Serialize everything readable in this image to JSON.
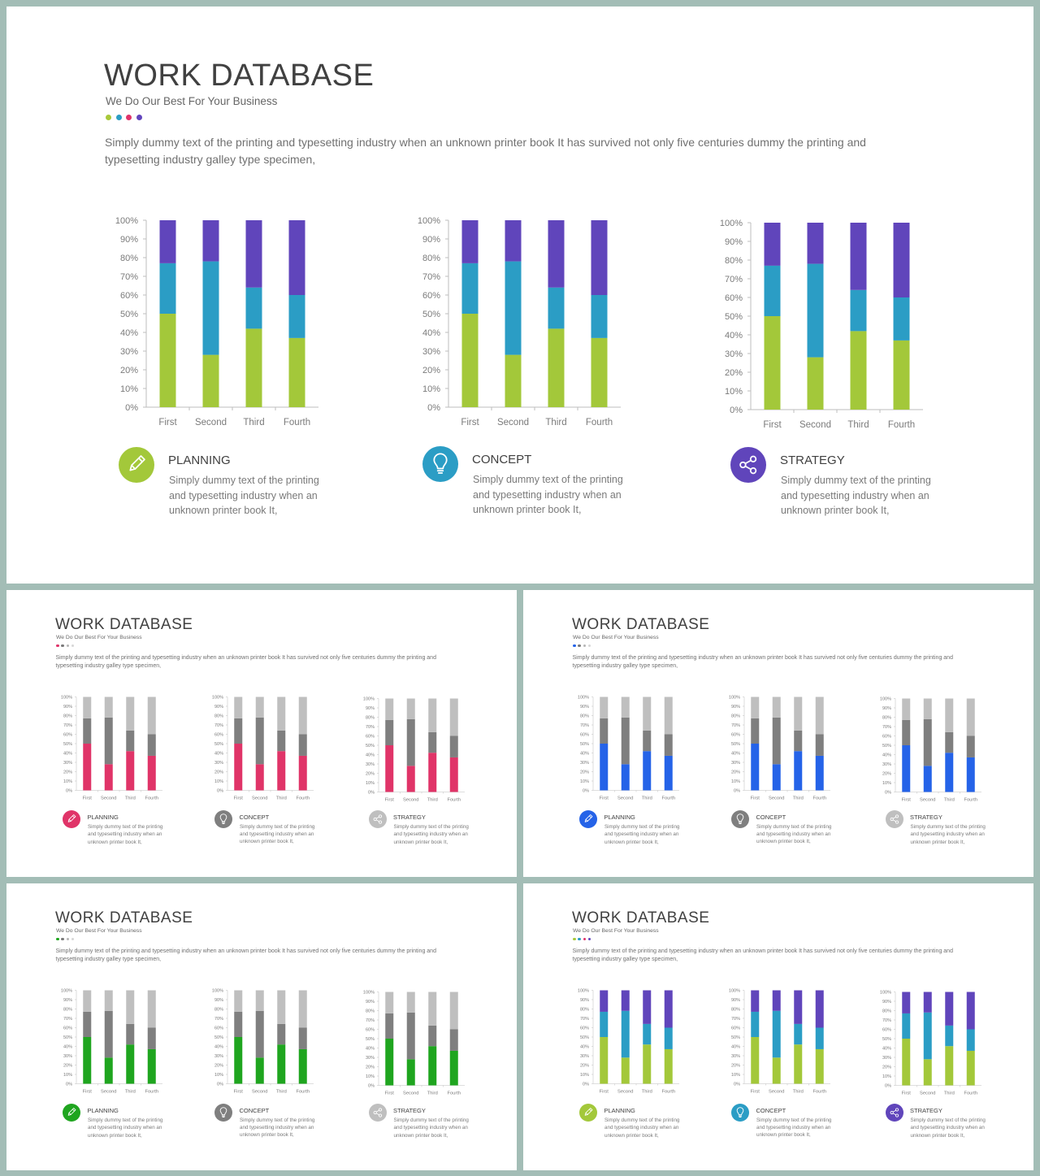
{
  "slides": [
    {
      "title": "WORK DATABASE",
      "subtitle": "We Do Our Best For Your Business",
      "dots": [
        "#a8c93a",
        "#2b9ec4",
        "#e0336a",
        "#6245bd"
      ],
      "description": "Simply dummy text of the printing and typesetting industry when an unknown printer book It has survived not only five centuries dummy the printing and typesetting industry galley type specimen,",
      "colors": [
        "#a3c83a",
        "#2b9dc5",
        "#6045bb"
      ],
      "icon_colors": [
        "#a3c83a",
        "#2b9dc5",
        "#6045bb"
      ]
    },
    {
      "title": "WORK DATABASE",
      "subtitle": "We Do Our Best For Your Business",
      "dots": [
        "#e0336a",
        "#7a7a7a",
        "#b5b5b5",
        "#d6d6d6"
      ],
      "description": "Simply dummy text of the printing and typesetting industry when an unknown printer book It has survived not only five centuries dummy the printing and typesetting industry galley type specimen,",
      "colors": [
        "#e03468",
        "#7f7f7f",
        "#bfbfbf"
      ],
      "icon_colors": [
        "#e03468",
        "#7f7f7f",
        "#bfbfbf"
      ]
    },
    {
      "title": "WORK DATABASE",
      "subtitle": "We Do Our Best For Your Business",
      "dots": [
        "#2563e8",
        "#7a7a7a",
        "#b5b5b5",
        "#d6d6d6"
      ],
      "description": "Simply dummy text of the printing and typesetting industry when an unknown printer book It has survived not only five centuries dummy the printing and typesetting industry galley type specimen,",
      "colors": [
        "#2563e8",
        "#7f7f7f",
        "#bfbfbf"
      ],
      "icon_colors": [
        "#2563e8",
        "#7f7f7f",
        "#bfbfbf"
      ]
    },
    {
      "title": "WORK DATABASE",
      "subtitle": "We Do Our Best For Your Business",
      "dots": [
        "#1fa51f",
        "#7a7a7a",
        "#b5b5b5",
        "#d6d6d6"
      ],
      "description": "Simply dummy text of the printing and typesetting industry when an unknown printer book It has survived not only five centuries dummy the printing and typesetting industry galley type specimen,",
      "colors": [
        "#1fa51f",
        "#7f7f7f",
        "#bfbfbf"
      ],
      "icon_colors": [
        "#1fa51f",
        "#7f7f7f",
        "#bfbfbf"
      ]
    },
    {
      "title": "WORK DATABASE",
      "subtitle": "We Do Our Best For Your Business",
      "dots": [
        "#a8c93a",
        "#2b9ec4",
        "#e0336a",
        "#6245bd"
      ],
      "description": "Simply dummy text of the printing and typesetting industry when an unknown printer book It has survived not only five centuries dummy the printing and typesetting industry galley type specimen,",
      "colors": [
        "#a3c83a",
        "#2b9dc5",
        "#6045bb"
      ],
      "icon_colors": [
        "#a3c83a",
        "#2b9dc5",
        "#6045bb"
      ]
    }
  ],
  "features": [
    {
      "title": "PLANNING",
      "text": "Simply dummy text of the printing and typesetting industry when an unknown printer book It,",
      "icon": "pencil-icon"
    },
    {
      "title": "CONCEPT",
      "text": "Simply dummy text of the printing and typesetting industry when an unknown printer book It,",
      "icon": "lightbulb-icon"
    },
    {
      "title": "STRATEGY",
      "text": "Simply dummy text of the printing and typesetting industry when an unknown printer book It,",
      "icon": "share-icon"
    }
  ],
  "chart_data": {
    "type": "bar",
    "stacked": true,
    "categories": [
      "First",
      "Second",
      "Third",
      "Fourth"
    ],
    "y_ticks": [
      "0%",
      "10%",
      "20%",
      "30%",
      "40%",
      "50%",
      "60%",
      "70%",
      "80%",
      "90%",
      "100%"
    ],
    "ylim": [
      0,
      100
    ],
    "series": [
      {
        "values": [
          50,
          28,
          42,
          37
        ]
      },
      {
        "values": [
          27,
          50,
          22,
          23
        ]
      },
      {
        "values": [
          23,
          22,
          36,
          40
        ]
      }
    ]
  }
}
